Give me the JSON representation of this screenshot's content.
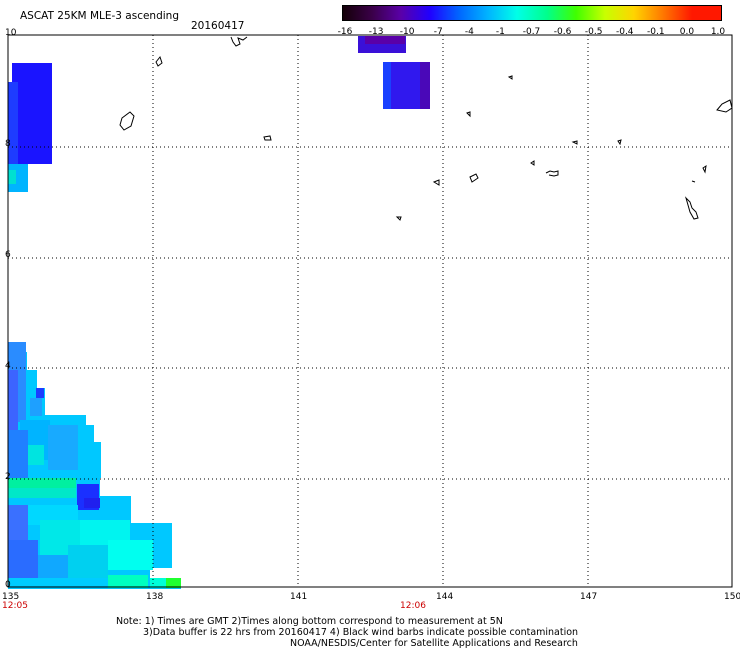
{
  "header": {
    "title": "ASCAT 25KM MLE-3 ascending",
    "date": "20160417"
  },
  "colorbar": {
    "labels": [
      "-16",
      "-13",
      "-10",
      "-7",
      "-4",
      "-1",
      "-0.7",
      "-0.6",
      "-0.5",
      "-0.4",
      "-0.1",
      "0.0",
      "1.0"
    ],
    "colors": [
      "#140008",
      "#3a0048",
      "#5a00a8",
      "#2000ff",
      "#0066ff",
      "#00b4ff",
      "#00ffe8",
      "#00ff8c",
      "#40ff00",
      "#c8ff00",
      "#ffd400",
      "#ff7800",
      "#ff1800"
    ]
  },
  "axes": {
    "lon_ticks": [
      "135",
      "138",
      "141",
      "144",
      "147",
      "150"
    ],
    "lat_ticks": [
      "10",
      "8",
      "6",
      "4",
      "2",
      "0"
    ],
    "time_labels": [
      "12:05",
      "12:06"
    ]
  },
  "notes": {
    "line1": "Note: 1) Times are GMT 2)Times along bottom correspond to measurement at 5N",
    "line2": "3)Data buffer is 22 hrs from 20160417 4) Black wind barbs indicate possible contamination",
    "line3": "NOAA/NESDIS/Center for Satellite Applications and Research"
  }
}
